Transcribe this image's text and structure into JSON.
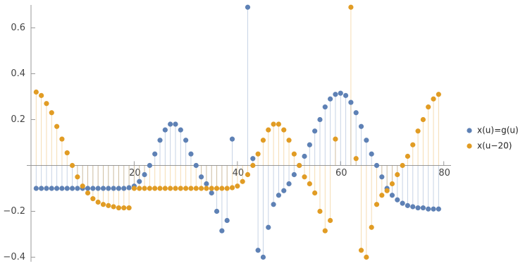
{
  "chart_data": {
    "type": "stem",
    "x": [
      1,
      2,
      3,
      4,
      5,
      6,
      7,
      8,
      9,
      10,
      11,
      12,
      13,
      14,
      15,
      16,
      17,
      18,
      19,
      20,
      21,
      22,
      23,
      24,
      25,
      26,
      27,
      28,
      29,
      30,
      31,
      32,
      33,
      34,
      35,
      36,
      37,
      38,
      39,
      40,
      41,
      42,
      43,
      44,
      45,
      46,
      47,
      48,
      49,
      50,
      51,
      52,
      53,
      54,
      55,
      56,
      57,
      58,
      59,
      60,
      61,
      62,
      63,
      64,
      65,
      66,
      67,
      68,
      69,
      70,
      71,
      72,
      73,
      74,
      75,
      76,
      77,
      78,
      79
    ],
    "series": [
      {
        "name": "x(u)=g(u)",
        "color": "#5e81b5",
        "values": [
          -0.1,
          -0.1,
          -0.1,
          -0.1,
          -0.1,
          -0.1,
          -0.1,
          -0.1,
          -0.1,
          -0.1,
          -0.1,
          -0.1,
          -0.1,
          -0.1,
          -0.1,
          -0.1,
          -0.1,
          -0.1,
          -0.097,
          -0.09,
          -0.07,
          -0.04,
          0,
          0.05,
          0.11,
          0.155,
          0.18,
          0.18,
          0.155,
          0.11,
          0.05,
          0,
          -0.05,
          -0.08,
          -0.12,
          -0.2,
          -0.285,
          -0.24,
          0.115,
          null,
          null,
          0.69,
          0.03,
          -0.37,
          -0.4,
          -0.27,
          -0.17,
          -0.13,
          -0.11,
          -0.08,
          -0.04,
          0,
          0.04,
          0.09,
          0.15,
          0.2,
          0.255,
          0.29,
          0.31,
          0.315,
          0.305,
          0.275,
          0.23,
          0.17,
          0.11,
          0.05,
          0,
          -0.05,
          -0.1,
          -0.13,
          -0.15,
          -0.165,
          -0.175,
          -0.18,
          -0.185,
          -0.185,
          -0.19,
          -0.19,
          -0.19
        ]
      },
      {
        "name": "x(u−20)",
        "color": "#e19c24",
        "values": [
          0.32,
          0.305,
          0.27,
          0.23,
          0.17,
          0.115,
          0.055,
          0,
          -0.05,
          -0.09,
          -0.12,
          -0.145,
          -0.16,
          -0.17,
          -0.175,
          -0.18,
          -0.185,
          -0.185,
          -0.185,
          -0.1,
          -0.1,
          -0.1,
          -0.1,
          -0.1,
          -0.1,
          -0.1,
          -0.1,
          -0.1,
          -0.1,
          -0.1,
          -0.1,
          -0.1,
          -0.1,
          -0.1,
          -0.1,
          -0.1,
          -0.1,
          -0.1,
          -0.097,
          -0.09,
          -0.07,
          -0.04,
          0,
          0.05,
          0.11,
          0.155,
          0.18,
          0.18,
          0.155,
          0.11,
          0.05,
          0,
          -0.05,
          -0.08,
          -0.12,
          -0.2,
          -0.285,
          -0.24,
          0.115,
          null,
          null,
          0.69,
          0.03,
          -0.37,
          -0.4,
          -0.27,
          -0.17,
          -0.13,
          -0.11,
          -0.08,
          -0.04,
          0,
          0.04,
          0.09,
          0.15,
          0.2,
          0.255,
          0.29,
          0.31
        ]
      }
    ],
    "xlim": [
      0,
      81
    ],
    "ylim": [
      -0.42,
      0.7
    ],
    "xticks": [
      20,
      40,
      60,
      80
    ],
    "yticks": [
      {
        "value": -0.4,
        "label": "−0.4"
      },
      {
        "value": -0.2,
        "label": "−0.2"
      },
      0.2,
      0.4,
      0.6
    ],
    "legend": "right"
  }
}
